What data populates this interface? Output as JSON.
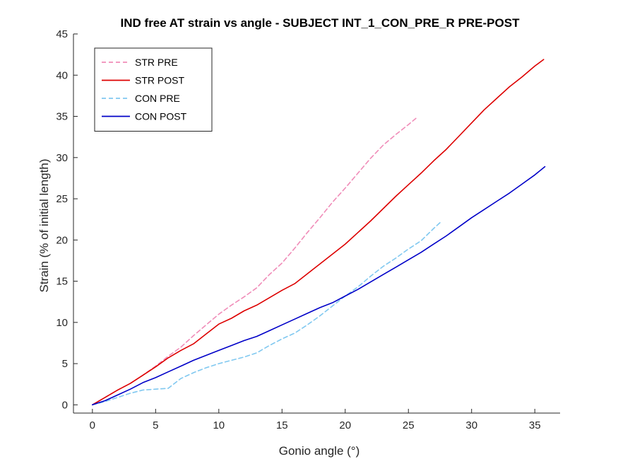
{
  "chart_data": {
    "type": "line",
    "title": "IND free AT strain vs angle - SUBJECT INT_1_CON_PRE_R PRE-POST",
    "xlabel": "Gonio angle (°)",
    "ylabel": "Strain (% of initial length)",
    "xlim": [
      -1.5,
      37
    ],
    "ylim": [
      -1,
      45
    ],
    "xticks": [
      0,
      5,
      10,
      15,
      20,
      25,
      30,
      35
    ],
    "yticks": [
      0,
      5,
      10,
      15,
      20,
      25,
      30,
      35,
      40,
      45
    ],
    "grid": false,
    "legend_position": "top-left",
    "series": [
      {
        "name": "STR PRE",
        "color": "#f08cb8",
        "style": "dashed",
        "x": [
          0,
          1,
          2,
          3,
          4,
          5,
          6,
          7,
          8,
          9,
          10,
          11,
          12,
          13,
          14,
          15,
          16,
          17,
          18,
          19,
          20,
          21,
          22,
          23,
          24,
          25,
          25.7
        ],
        "y": [
          0,
          0.9,
          1.8,
          2.6,
          3.6,
          4.7,
          5.9,
          7.0,
          8.4,
          9.7,
          11.0,
          12.1,
          13.1,
          14.2,
          15.8,
          17.2,
          19.0,
          20.9,
          22.7,
          24.6,
          26.3,
          28.1,
          29.9,
          31.5,
          32.8,
          34.0,
          34.9
        ]
      },
      {
        "name": "STR POST",
        "color": "#dd0000",
        "style": "solid",
        "x": [
          0,
          1,
          2,
          3,
          4,
          5,
          6,
          7,
          8,
          9,
          10,
          11,
          12,
          13,
          14,
          15,
          16,
          17,
          18,
          19,
          20,
          21,
          22,
          23,
          24,
          25,
          26,
          27,
          28,
          29,
          30,
          31,
          32,
          33,
          34,
          35,
          35.7
        ],
        "y": [
          0,
          0.9,
          1.8,
          2.6,
          3.6,
          4.6,
          5.7,
          6.6,
          7.4,
          8.6,
          9.8,
          10.5,
          11.4,
          12.1,
          13.0,
          13.9,
          14.7,
          15.9,
          17.1,
          18.3,
          19.5,
          20.9,
          22.3,
          23.8,
          25.3,
          26.7,
          28.1,
          29.6,
          31.0,
          32.6,
          34.2,
          35.8,
          37.2,
          38.6,
          39.8,
          41.1,
          41.9
        ]
      },
      {
        "name": "CON PRE",
        "color": "#80c8f0",
        "style": "dashed",
        "x": [
          0,
          1,
          2,
          3,
          4,
          5,
          6,
          7,
          8,
          9,
          10,
          11,
          12,
          13,
          14,
          15,
          16,
          17,
          18,
          19,
          20,
          21,
          22,
          23,
          24,
          25,
          26,
          27,
          27.5
        ],
        "y": [
          0,
          0.4,
          0.9,
          1.4,
          1.8,
          1.9,
          2.0,
          3.2,
          3.9,
          4.5,
          5.0,
          5.4,
          5.8,
          6.3,
          7.2,
          8.0,
          8.7,
          9.7,
          10.8,
          12.0,
          13.2,
          14.3,
          15.6,
          16.8,
          17.8,
          18.9,
          19.9,
          21.4,
          22.1
        ]
      },
      {
        "name": "CON POST",
        "color": "#0000c8",
        "style": "solid",
        "x": [
          0,
          1,
          2,
          3,
          4,
          5,
          6,
          7,
          8,
          9,
          10,
          11,
          12,
          13,
          14,
          15,
          16,
          17,
          18,
          19,
          20,
          21,
          22,
          23,
          24,
          25,
          26,
          27,
          28,
          29,
          30,
          31,
          32,
          33,
          34,
          35,
          35.8
        ],
        "y": [
          0,
          0.5,
          1.2,
          1.9,
          2.7,
          3.3,
          4.0,
          4.7,
          5.4,
          6.0,
          6.6,
          7.2,
          7.8,
          8.3,
          9.0,
          9.7,
          10.4,
          11.1,
          11.8,
          12.4,
          13.2,
          14.0,
          14.9,
          15.8,
          16.7,
          17.6,
          18.5,
          19.5,
          20.5,
          21.6,
          22.7,
          23.7,
          24.7,
          25.7,
          26.8,
          27.9,
          28.9
        ]
      }
    ]
  }
}
